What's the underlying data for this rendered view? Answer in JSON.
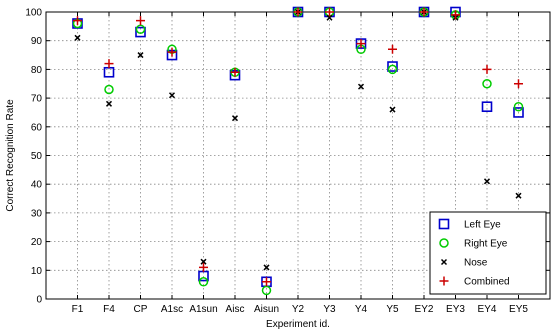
{
  "chart_data": {
    "type": "scatter",
    "xlabel": "Experiment id.",
    "ylabel": "Correct Recognition Rate",
    "ylim": [
      0,
      100
    ],
    "yticks": [
      0,
      10,
      20,
      30,
      40,
      50,
      60,
      70,
      80,
      90,
      100
    ],
    "grid": true,
    "legend_position": "bottom-right",
    "categories": [
      "F1",
      "F4",
      "CP",
      "A1sc",
      "A1sun",
      "Aisc",
      "Aisun",
      "Y2",
      "Y3",
      "Y4",
      "Y5",
      "EY2",
      "EY3",
      "EY4",
      "EY5"
    ],
    "series": [
      {
        "name": "Left Eye",
        "marker": "square",
        "color": "#0000cc",
        "values": [
          96,
          79,
          93,
          85,
          8,
          78,
          6,
          100,
          100,
          89,
          81,
          100,
          100,
          67,
          65
        ]
      },
      {
        "name": "Right Eye",
        "marker": "circle",
        "color": "#00cc00",
        "values": [
          96,
          73,
          94,
          87,
          6,
          79,
          3,
          100,
          100,
          87,
          80,
          100,
          99,
          75,
          67
        ]
      },
      {
        "name": "Nose",
        "marker": "x",
        "color": "#000000",
        "values": [
          91,
          68,
          85,
          71,
          13,
          63,
          11,
          100,
          98,
          74,
          66,
          100,
          98,
          41,
          36
        ]
      },
      {
        "name": "Combined",
        "marker": "plus",
        "color": "#cc0000",
        "values": [
          97,
          82,
          97,
          86,
          11,
          79,
          6,
          100,
          100,
          89,
          87,
          100,
          99,
          80,
          75
        ]
      }
    ]
  }
}
